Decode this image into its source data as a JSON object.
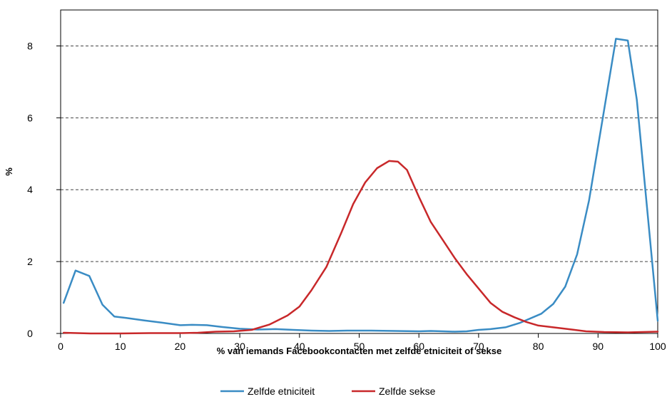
{
  "chart_data": {
    "type": "line",
    "title": "",
    "xlabel": "% van iemands Facebookcontacten met zelfde etniciteit of sekse",
    "ylabel": "%",
    "xlim": [
      0,
      100
    ],
    "ylim": [
      0,
      9
    ],
    "xticks": [
      0,
      10,
      20,
      30,
      40,
      50,
      60,
      70,
      80,
      90,
      100
    ],
    "yticks": [
      0,
      2,
      4,
      6,
      8
    ],
    "grid": "horizontal dashed at 2, 4, 6, 8",
    "legend_position": "bottom-center",
    "series": [
      {
        "name": "Zelfde etniciteit",
        "color": "#3a8cc4",
        "points": [
          [
            0.5,
            0.85
          ],
          [
            2.5,
            1.75
          ],
          [
            4.8,
            1.6
          ],
          [
            7,
            0.8
          ],
          [
            9,
            0.47
          ],
          [
            11,
            0.43
          ],
          [
            14,
            0.36
          ],
          [
            17,
            0.3
          ],
          [
            20,
            0.23
          ],
          [
            22,
            0.24
          ],
          [
            24.5,
            0.23
          ],
          [
            27,
            0.18
          ],
          [
            30,
            0.13
          ],
          [
            33,
            0.11
          ],
          [
            36,
            0.12
          ],
          [
            39,
            0.1
          ],
          [
            42,
            0.08
          ],
          [
            45,
            0.07
          ],
          [
            48,
            0.08
          ],
          [
            52,
            0.08
          ],
          [
            56,
            0.07
          ],
          [
            60,
            0.06
          ],
          [
            62,
            0.07
          ],
          [
            64,
            0.06
          ],
          [
            66,
            0.05
          ],
          [
            68,
            0.06
          ],
          [
            70,
            0.1
          ],
          [
            72,
            0.12
          ],
          [
            74.5,
            0.17
          ],
          [
            77,
            0.3
          ],
          [
            80.5,
            0.55
          ],
          [
            82.5,
            0.82
          ],
          [
            84.5,
            1.3
          ],
          [
            86.5,
            2.2
          ],
          [
            88.5,
            3.7
          ],
          [
            91,
            6.2
          ],
          [
            93,
            8.2
          ],
          [
            95,
            8.15
          ],
          [
            96.5,
            6.5
          ],
          [
            98.5,
            3.0
          ],
          [
            100,
            0.35
          ]
        ]
      },
      {
        "name": "Zelfde sekse",
        "color": "#c8282a",
        "points": [
          [
            0.5,
            0.02
          ],
          [
            5,
            0.0
          ],
          [
            10,
            0.0
          ],
          [
            15,
            0.01
          ],
          [
            20,
            0.01
          ],
          [
            23,
            0.02
          ],
          [
            26,
            0.05
          ],
          [
            29,
            0.06
          ],
          [
            32,
            0.1
          ],
          [
            35,
            0.25
          ],
          [
            38,
            0.5
          ],
          [
            40,
            0.75
          ],
          [
            42,
            1.2
          ],
          [
            44.5,
            1.85
          ],
          [
            47,
            2.8
          ],
          [
            49,
            3.6
          ],
          [
            51,
            4.2
          ],
          [
            53,
            4.6
          ],
          [
            55,
            4.8
          ],
          [
            56.5,
            4.78
          ],
          [
            58,
            4.55
          ],
          [
            60,
            3.8
          ],
          [
            62,
            3.1
          ],
          [
            64,
            2.6
          ],
          [
            66,
            2.1
          ],
          [
            68,
            1.65
          ],
          [
            70,
            1.25
          ],
          [
            72,
            0.85
          ],
          [
            74,
            0.6
          ],
          [
            76,
            0.45
          ],
          [
            78,
            0.32
          ],
          [
            80,
            0.22
          ],
          [
            82,
            0.18
          ],
          [
            85,
            0.12
          ],
          [
            88,
            0.06
          ],
          [
            91,
            0.04
          ],
          [
            95,
            0.03
          ],
          [
            100,
            0.05
          ]
        ]
      }
    ]
  }
}
